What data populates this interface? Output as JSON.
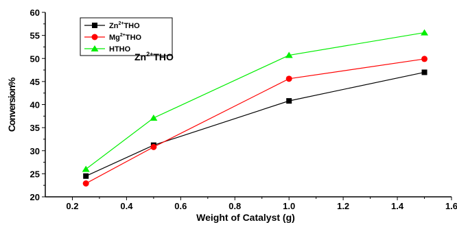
{
  "chart_data": {
    "type": "line",
    "x": [
      0.25,
      0.5,
      1.0,
      1.5
    ],
    "series": [
      {
        "name": "Zn2+THO",
        "label_base": "Zn",
        "label_sup": "2+",
        "label_tail": "THO",
        "values": [
          24.5,
          31.2,
          40.8,
          47.0
        ],
        "color": "#000000",
        "marker": "square"
      },
      {
        "name": "Mg2+THO",
        "label_base": "Mg",
        "label_sup": "2+",
        "label_tail": "THO",
        "values": [
          22.9,
          30.8,
          45.6,
          49.9
        ],
        "color": "#ff0000",
        "marker": "circle"
      },
      {
        "name": "HTHO",
        "label_base": "HTHO",
        "label_sup": "",
        "label_tail": "",
        "values": [
          26.0,
          37.1,
          50.7,
          55.6
        ],
        "color": "#00ee00",
        "marker": "triangle"
      }
    ],
    "xlabel": "Weight of Catalyst (g)",
    "ylabel": "Conversion%",
    "xlim": [
      0.1,
      1.6
    ],
    "ylim": [
      20,
      60
    ],
    "xticks": [
      "0.2",
      "0.4",
      "0.6",
      "0.8",
      "1.0",
      "1.2",
      "1.4",
      "1.6"
    ],
    "yticks": [
      "20",
      "25",
      "30",
      "35",
      "40",
      "45",
      "50",
      "55",
      "60"
    ],
    "annotation": {
      "base": "Zn",
      "sup": "2+",
      "tail": "THO"
    },
    "grid": false,
    "legend_position": "top-left"
  }
}
